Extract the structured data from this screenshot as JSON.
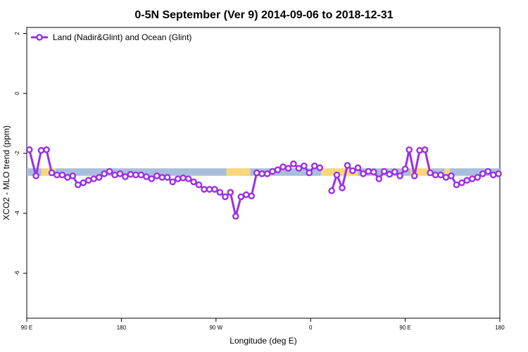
{
  "chart_data": {
    "type": "line",
    "title": "0-5N September (Ver 9)   2014-09-06 to 2018-12-31",
    "xlabel": "Longitude (deg E)",
    "ylabel": "XCO2 - MLO trend (ppm)",
    "xlim": [
      90,
      450
    ],
    "ylim": [
      -7.5,
      2.2
    ],
    "x_ticks": [
      {
        "value": 90,
        "label": "90 E"
      },
      {
        "value": 162,
        "label": "180"
      },
      {
        "value": 234,
        "label": "90 W"
      },
      {
        "value": 306,
        "label": "0"
      },
      {
        "value": 378,
        "label": "90 E"
      },
      {
        "value": 450,
        "label": "180"
      }
    ],
    "y_ticks": [
      {
        "value": 2,
        "label": "2"
      },
      {
        "value": 0,
        "label": "0"
      },
      {
        "value": -2,
        "label": "-2"
      },
      {
        "value": -4,
        "label": "-4"
      },
      {
        "value": -6,
        "label": "-6"
      }
    ],
    "grid": false,
    "legend": {
      "position": "top-left"
    },
    "surface_band": {
      "y_range": [
        -2.75,
        -2.5
      ],
      "colors": {
        "land": "#f8d67a",
        "ocean": "#a8bfdb"
      },
      "segments": [
        {
          "from": 90,
          "to": 101,
          "type": "ocean"
        },
        {
          "from": 101,
          "to": 112,
          "type": "land"
        },
        {
          "from": 112,
          "to": 242,
          "type": "ocean"
        },
        {
          "from": 242,
          "to": 260,
          "type": "land"
        },
        {
          "from": 260,
          "to": 314,
          "type": "ocean"
        },
        {
          "from": 314,
          "to": 342,
          "type": "land"
        },
        {
          "from": 342,
          "to": 382,
          "type": "ocean"
        },
        {
          "from": 382,
          "to": 398,
          "type": "land"
        },
        {
          "from": 398,
          "to": 408,
          "type": "ocean"
        },
        {
          "from": 408,
          "to": 412,
          "type": "land"
        },
        {
          "from": 412,
          "to": 450,
          "type": "ocean"
        }
      ]
    },
    "series": [
      {
        "name": "Land (Nadir&Glint) and Ocean (Glint)",
        "color": "#9b30e8",
        "segments": [
          [
            [
              92,
              -1.88
            ],
            [
              97,
              -2.75
            ],
            [
              101,
              -1.9
            ],
            [
              105,
              -1.88
            ],
            [
              109,
              -2.65
            ],
            [
              113,
              -2.72
            ],
            [
              117,
              -2.72
            ],
            [
              121,
              -2.8
            ],
            [
              125,
              -2.75
            ],
            [
              129,
              -3.05
            ],
            [
              133,
              -2.98
            ],
            [
              137,
              -2.9
            ],
            [
              141,
              -2.85
            ],
            [
              145,
              -2.8
            ],
            [
              149,
              -2.68
            ],
            [
              153,
              -2.6
            ],
            [
              157,
              -2.72
            ],
            [
              161,
              -2.68
            ],
            [
              165,
              -2.78
            ],
            [
              169,
              -2.7
            ],
            [
              173,
              -2.72
            ],
            [
              177,
              -2.72
            ],
            [
              181,
              -2.78
            ],
            [
              185,
              -2.85
            ],
            [
              189,
              -2.75
            ],
            [
              193,
              -2.8
            ],
            [
              197,
              -2.8
            ],
            [
              201,
              -2.95
            ],
            [
              205,
              -2.85
            ],
            [
              209,
              -2.82
            ],
            [
              213,
              -2.85
            ],
            [
              217,
              -2.95
            ],
            [
              221,
              -3.05
            ],
            [
              225,
              -3.2
            ],
            [
              229,
              -3.2
            ],
            [
              233,
              -3.2
            ],
            [
              237,
              -3.3
            ],
            [
              241,
              -3.45
            ],
            [
              245,
              -3.3
            ],
            [
              249,
              -4.1
            ],
            [
              253,
              -3.45
            ],
            [
              257,
              -3.38
            ],
            [
              261,
              -3.42
            ],
            [
              265,
              -2.65
            ],
            [
              269,
              -2.68
            ],
            [
              273,
              -2.68
            ],
            [
              277,
              -2.6
            ],
            [
              281,
              -2.55
            ],
            [
              285,
              -2.45
            ],
            [
              289,
              -2.5
            ],
            [
              293,
              -2.35
            ],
            [
              297,
              -2.5
            ],
            [
              301,
              -2.42
            ],
            [
              305,
              -2.65
            ],
            [
              309,
              -2.42
            ],
            [
              313,
              -2.48
            ]
          ],
          [
            [
              322,
              -3.25
            ],
            [
              326,
              -2.72
            ],
            [
              330,
              -3.15
            ],
            [
              334,
              -2.4
            ],
            [
              338,
              -2.58
            ],
            [
              342,
              -2.48
            ],
            [
              346,
              -2.68
            ],
            [
              350,
              -2.6
            ],
            [
              354,
              -2.62
            ],
            [
              358,
              -2.85
            ],
            [
              362,
              -2.6
            ],
            [
              366,
              -2.7
            ],
            [
              370,
              -2.62
            ],
            [
              374,
              -2.75
            ],
            [
              378,
              -2.52
            ],
            [
              381,
              -1.88
            ],
            [
              385,
              -2.75
            ],
            [
              389,
              -1.9
            ],
            [
              393,
              -1.88
            ],
            [
              397,
              -2.65
            ],
            [
              401,
              -2.72
            ],
            [
              405,
              -2.72
            ],
            [
              409,
              -2.8
            ],
            [
              413,
              -2.75
            ],
            [
              417,
              -3.05
            ],
            [
              421,
              -2.98
            ],
            [
              425,
              -2.9
            ],
            [
              429,
              -2.85
            ],
            [
              433,
              -2.8
            ],
            [
              437,
              -2.68
            ],
            [
              441,
              -2.6
            ],
            [
              445,
              -2.72
            ],
            [
              449,
              -2.68
            ]
          ]
        ]
      }
    ]
  }
}
